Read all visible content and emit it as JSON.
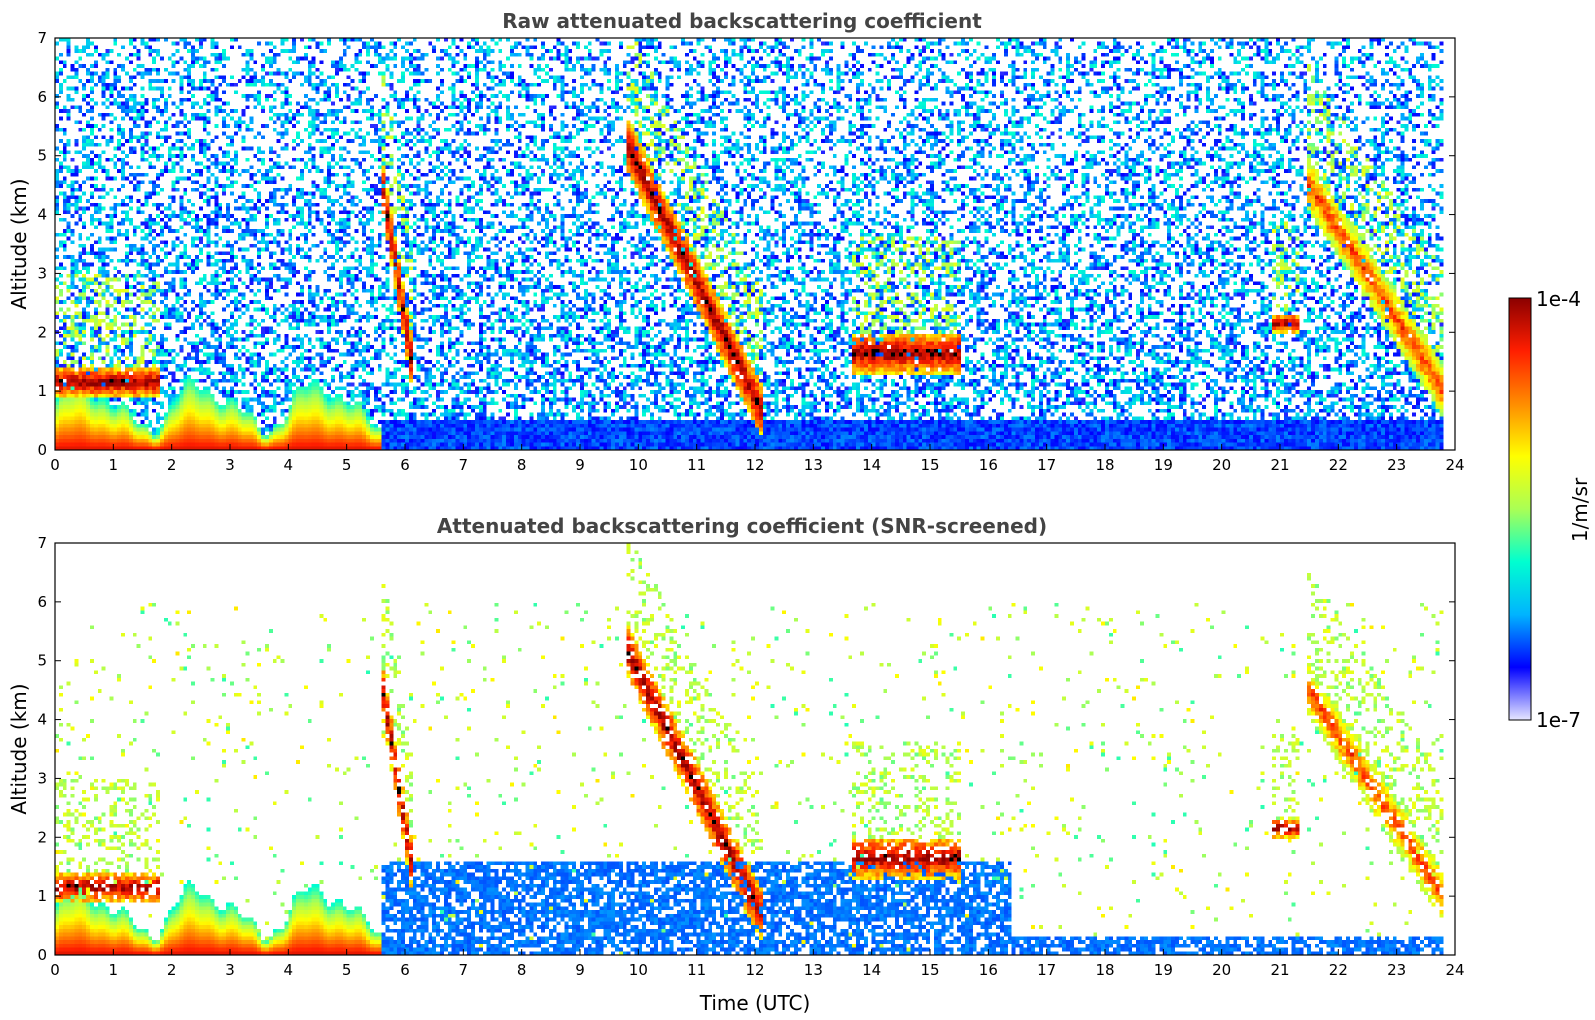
{
  "colors": {
    "jet_stops": [
      "#e6e6ff",
      "#0000ff",
      "#00b4ff",
      "#00ffd0",
      "#aaff55",
      "#ffff00",
      "#ff8c00",
      "#ff1e00",
      "#8b0000"
    ],
    "strong_echo": "#000000",
    "frame": "#000000"
  },
  "chart_data": [
    {
      "type": "heatmap",
      "title": "Raw attenuated backscattering coefficient",
      "xlabel": "",
      "ylabel": "Altitude (km)",
      "xlim": [
        0,
        24
      ],
      "ylim": [
        0,
        7
      ],
      "x_ticks": [
        "0",
        "1",
        "2",
        "3",
        "4",
        "5",
        "6",
        "7",
        "8",
        "9",
        "10",
        "11",
        "12",
        "13",
        "14",
        "15",
        "16",
        "17",
        "18",
        "19",
        "20",
        "21",
        "22",
        "23",
        "24"
      ],
      "y_ticks": [
        "0",
        "1",
        "2",
        "3",
        "4",
        "5",
        "6",
        "7"
      ],
      "data_end_time": 23.8,
      "background_noise": "dense speckle at all altitudes",
      "features": [
        {
          "type": "boundary_layer",
          "t0": 0.0,
          "t1": 5.6,
          "alt_top": 1.4,
          "intensity": "high"
        },
        {
          "type": "boundary_layer",
          "t0": 5.6,
          "t1": 23.8,
          "alt_top": 0.5,
          "intensity": "low"
        },
        {
          "type": "cloud",
          "t0": 0.0,
          "t1": 1.8,
          "alt_bottom": 0.9,
          "alt_top": 1.4,
          "intensity": "high"
        },
        {
          "type": "cloud",
          "t0": 5.6,
          "t1": 6.1,
          "alt_bottom": 1.6,
          "alt_top": 4.6,
          "intensity": "high"
        },
        {
          "type": "cloud",
          "t0": 9.8,
          "t1": 12.1,
          "alt_bottom": 0.7,
          "alt_top": 5.2,
          "intensity": "high"
        },
        {
          "type": "cloud",
          "t0": 13.7,
          "t1": 15.5,
          "alt_bottom": 1.3,
          "alt_top": 2.0,
          "intensity": "high"
        },
        {
          "type": "cloud",
          "t0": 20.9,
          "t1": 21.3,
          "alt_bottom": 2.0,
          "alt_top": 2.3,
          "intensity": "high"
        },
        {
          "type": "cloud",
          "t0": 21.5,
          "t1": 23.8,
          "alt_bottom": 1.0,
          "alt_top": 4.5,
          "intensity": "medium"
        }
      ]
    },
    {
      "type": "heatmap",
      "title": "Attenuated backscattering coefficient (SNR-screened)",
      "xlabel": "Time (UTC)",
      "ylabel": "Altitude (km)",
      "xlim": [
        0,
        24
      ],
      "ylim": [
        0,
        7
      ],
      "x_ticks": [
        "0",
        "1",
        "2",
        "3",
        "4",
        "5",
        "6",
        "7",
        "8",
        "9",
        "10",
        "11",
        "12",
        "13",
        "14",
        "15",
        "16",
        "17",
        "18",
        "19",
        "20",
        "21",
        "22",
        "23",
        "24"
      ],
      "y_ticks": [
        "0",
        "1",
        "2",
        "3",
        "4",
        "5",
        "6",
        "7"
      ],
      "data_end_time": 23.8,
      "background_noise": "screened out (white)",
      "features": [
        {
          "type": "boundary_layer",
          "t0": 0.0,
          "t1": 5.6,
          "alt_top": 1.4,
          "intensity": "high"
        },
        {
          "type": "boundary_layer",
          "t0": 5.6,
          "t1": 16.4,
          "alt_top": 1.6,
          "intensity": "low"
        },
        {
          "type": "boundary_layer",
          "t0": 16.4,
          "t1": 23.8,
          "alt_top": 0.35,
          "intensity": "low"
        },
        {
          "type": "cloud",
          "t0": 0.0,
          "t1": 1.8,
          "alt_bottom": 0.9,
          "alt_top": 1.4,
          "intensity": "high"
        },
        {
          "type": "cloud",
          "t0": 5.6,
          "t1": 6.1,
          "alt_bottom": 1.6,
          "alt_top": 4.6,
          "intensity": "high"
        },
        {
          "type": "cloud",
          "t0": 9.8,
          "t1": 12.1,
          "alt_bottom": 0.7,
          "alt_top": 5.2,
          "intensity": "high"
        },
        {
          "type": "cloud",
          "t0": 13.7,
          "t1": 15.5,
          "alt_bottom": 1.3,
          "alt_top": 2.0,
          "intensity": "high"
        },
        {
          "type": "cloud",
          "t0": 20.9,
          "t1": 21.3,
          "alt_bottom": 2.0,
          "alt_top": 2.3,
          "intensity": "high"
        },
        {
          "type": "cloud",
          "t0": 21.5,
          "t1": 23.8,
          "alt_bottom": 1.0,
          "alt_top": 4.5,
          "intensity": "medium"
        }
      ]
    }
  ],
  "colorbar": {
    "max_label": "1e-4",
    "min_label": "1e-7",
    "unit_label": "1/m/sr",
    "scale": "log"
  }
}
